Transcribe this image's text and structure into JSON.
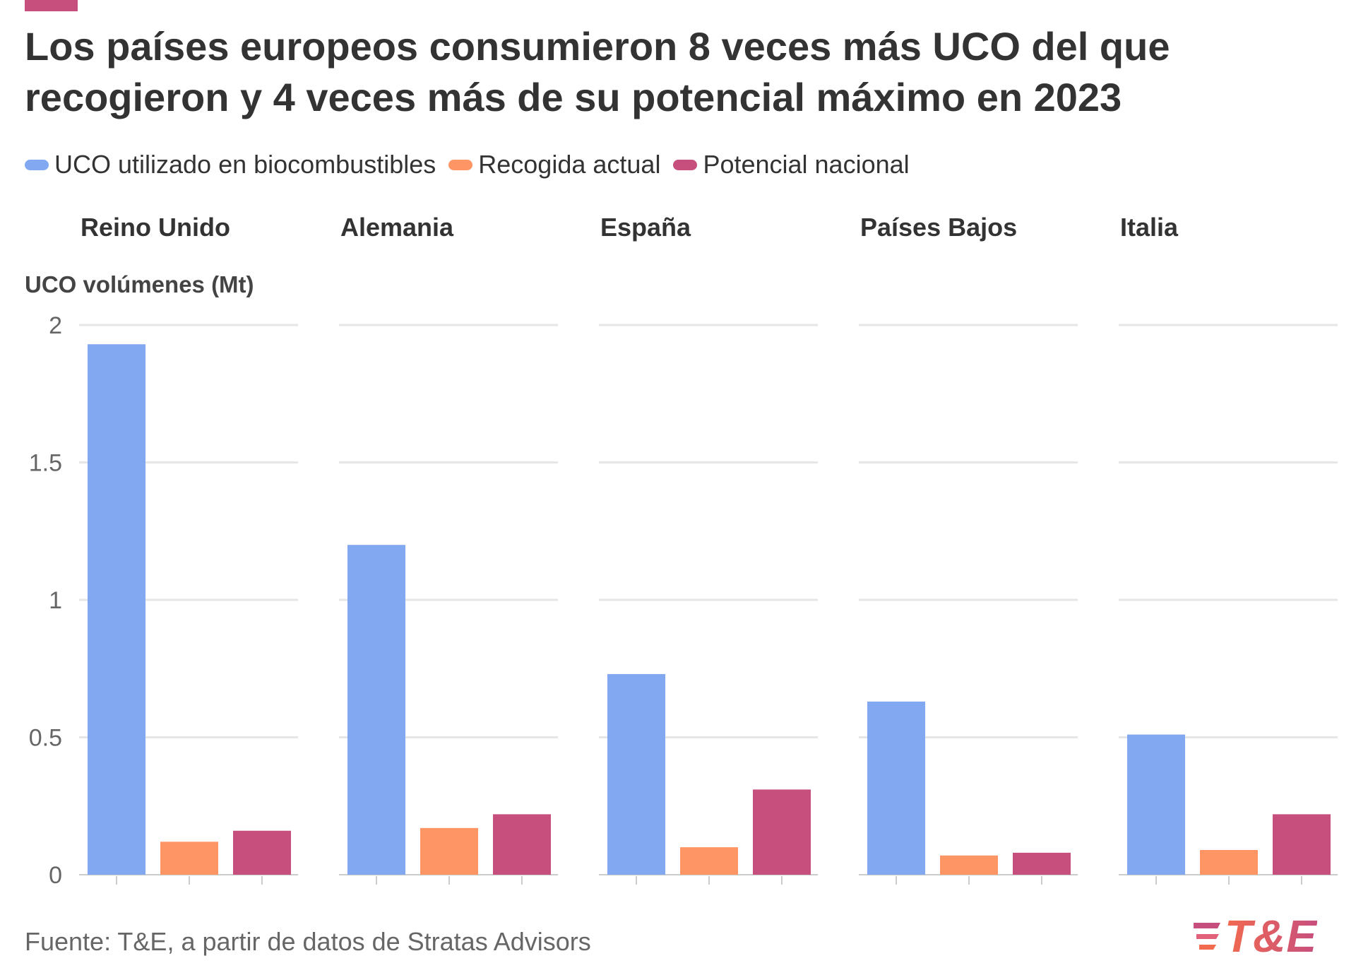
{
  "title": {
    "line1": "Los países europeos consumieron 8 veces más UCO del que",
    "line2": "recogieron y 4 veces más de su potencial máximo en 2023"
  },
  "legend": [
    {
      "label": "UCO utilizado en biocombustibles",
      "color": "#83a8f2"
    },
    {
      "label": "Recogida actual",
      "color": "#fe9565"
    },
    {
      "label": "Potencial nacional",
      "color": "#c74f7e"
    }
  ],
  "source": "Fuente: T&E, a partir de datos de Stratas Advisors",
  "logo": {
    "text": "T&E",
    "icon": "t-and-e-logo-icon"
  },
  "colors": {
    "accent": "#c74f7e",
    "grid": "#e6e6e6"
  },
  "chart_data": {
    "type": "bar",
    "ylabel": "UCO volúmenes (Mt)",
    "ylim": [
      0,
      2
    ],
    "yticks": [
      0,
      0.5,
      1,
      1.5,
      2
    ],
    "ytick_labels": [
      "0",
      "0.5",
      "1",
      "1.5",
      "2"
    ],
    "grid": true,
    "legend_position": "top-left",
    "categories": [
      "Reino Unido",
      "Alemania",
      "España",
      "Países Bajos",
      "Italia"
    ],
    "series": [
      {
        "name": "UCO utilizado en biocombustibles",
        "color": "#83a8f2",
        "values": [
          1.93,
          1.2,
          0.73,
          0.63,
          0.51
        ]
      },
      {
        "name": "Recogida actual",
        "color": "#fe9565",
        "values": [
          0.12,
          0.17,
          0.1,
          0.07,
          0.09
        ]
      },
      {
        "name": "Potencial nacional",
        "color": "#c74f7e",
        "values": [
          0.16,
          0.22,
          0.31,
          0.08,
          0.22
        ]
      }
    ]
  }
}
